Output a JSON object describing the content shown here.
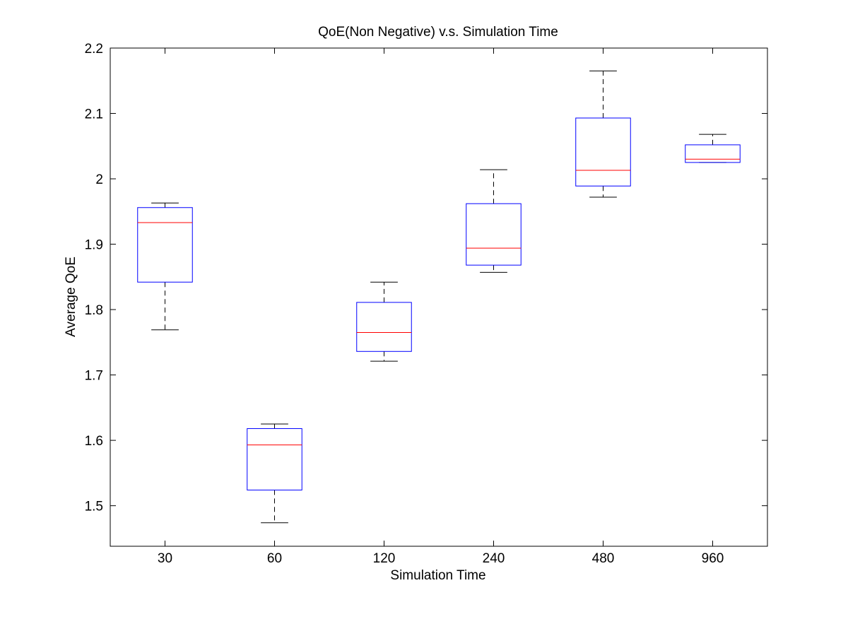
{
  "chart_data": {
    "type": "box",
    "title": "QoE(Non Negative) v.s. Simulation Time",
    "xlabel": "Simulation Time",
    "ylabel": "Average QoE",
    "categories": [
      "30",
      "60",
      "120",
      "240",
      "480",
      "960"
    ],
    "ylim": [
      1.438,
      2.2
    ],
    "yticks": [
      1.5,
      1.6,
      1.7,
      1.8,
      1.9,
      2.0,
      2.1,
      2.2
    ],
    "ytick_labels": [
      "1.5",
      "1.6",
      "1.7",
      "1.8",
      "1.9",
      "2",
      "2.1",
      "2.2"
    ],
    "grid": false,
    "boxes": [
      {
        "category": "30",
        "whisker_low": 1.769,
        "q1": 1.842,
        "median": 1.933,
        "q3": 1.956,
        "whisker_high": 1.963
      },
      {
        "category": "60",
        "whisker_low": 1.474,
        "q1": 1.524,
        "median": 1.593,
        "q3": 1.618,
        "whisker_high": 1.625
      },
      {
        "category": "120",
        "whisker_low": 1.721,
        "q1": 1.736,
        "median": 1.765,
        "q3": 1.811,
        "whisker_high": 1.842
      },
      {
        "category": "240",
        "whisker_low": 1.857,
        "q1": 1.868,
        "median": 1.894,
        "q3": 1.962,
        "whisker_high": 2.014
      },
      {
        "category": "480",
        "whisker_low": 1.972,
        "q1": 1.989,
        "median": 2.013,
        "q3": 2.093,
        "whisker_high": 2.165
      },
      {
        "category": "960",
        "whisker_low": 2.025,
        "q1": 2.025,
        "median": 2.03,
        "q3": 2.052,
        "whisker_high": 2.068
      }
    ],
    "colors": {
      "box": "#0000ff",
      "median": "#ff0000",
      "whisker": "#000000",
      "axes": "#000000",
      "background": "#ffffff"
    }
  }
}
